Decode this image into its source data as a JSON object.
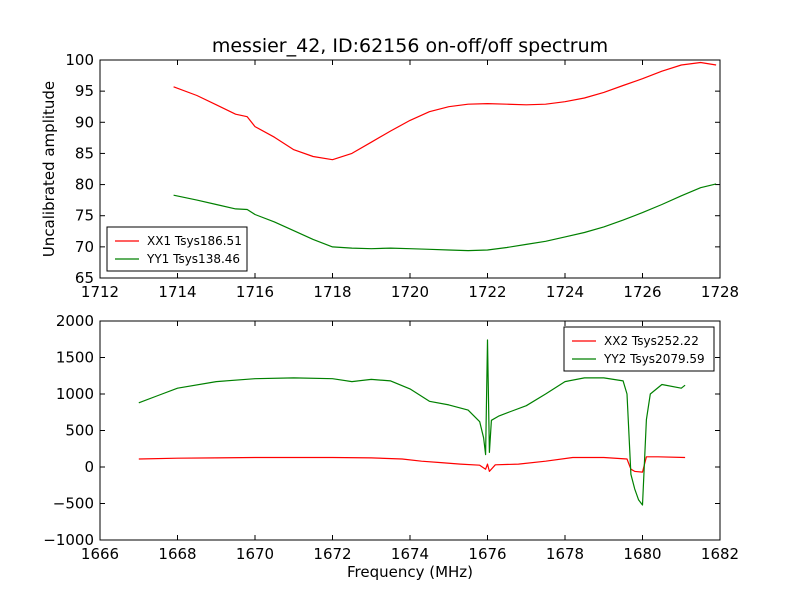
{
  "title": "messier_42, ID:62156 on-off/off spectrum",
  "colors": {
    "xx": "#ff0000",
    "yy": "#008000"
  },
  "chart_data": [
    {
      "type": "line",
      "ylabel": "Uncalibrated amplitude",
      "xlabel": "",
      "xlim": [
        1712,
        1728
      ],
      "ylim": [
        65,
        100
      ],
      "xticks": [
        1712,
        1714,
        1716,
        1718,
        1720,
        1722,
        1724,
        1726,
        1728
      ],
      "yticks": [
        65,
        70,
        75,
        80,
        85,
        90,
        95,
        100
      ],
      "legend": "bottom-left",
      "grid": false,
      "series": [
        {
          "name": "XX1 Tsys186.51",
          "color": "#ff0000",
          "x": [
            1713.9,
            1714.5,
            1715.0,
            1715.5,
            1715.8,
            1716.0,
            1716.5,
            1717.0,
            1717.5,
            1718.0,
            1718.5,
            1719.0,
            1719.5,
            1720.0,
            1720.5,
            1721.0,
            1721.5,
            1722.0,
            1722.5,
            1723.0,
            1723.5,
            1724.0,
            1724.5,
            1725.0,
            1725.5,
            1726.0,
            1726.5,
            1727.0,
            1727.5,
            1727.9
          ],
          "y": [
            95.7,
            94.3,
            92.8,
            91.3,
            90.9,
            89.3,
            87.6,
            85.6,
            84.5,
            84.0,
            85.0,
            86.8,
            88.6,
            90.3,
            91.7,
            92.5,
            92.9,
            93.0,
            92.9,
            92.8,
            92.9,
            93.3,
            93.9,
            94.8,
            95.9,
            97.0,
            98.2,
            99.2,
            99.6,
            99.2
          ]
        },
        {
          "name": "YY1 Tsys138.46",
          "color": "#008000",
          "x": [
            1713.9,
            1714.5,
            1715.0,
            1715.5,
            1715.8,
            1716.0,
            1716.5,
            1717.0,
            1717.5,
            1718.0,
            1718.5,
            1719.0,
            1719.5,
            1720.0,
            1720.5,
            1721.0,
            1721.5,
            1722.0,
            1722.5,
            1723.0,
            1723.5,
            1724.0,
            1724.5,
            1725.0,
            1725.5,
            1726.0,
            1726.5,
            1727.0,
            1727.5,
            1727.9
          ],
          "y": [
            78.3,
            77.5,
            76.8,
            76.1,
            76.0,
            75.2,
            74.0,
            72.6,
            71.2,
            70.0,
            69.8,
            69.7,
            69.8,
            69.7,
            69.6,
            69.5,
            69.4,
            69.5,
            69.9,
            70.4,
            70.9,
            71.6,
            72.3,
            73.2,
            74.3,
            75.5,
            76.8,
            78.2,
            79.5,
            80.1
          ]
        }
      ]
    },
    {
      "type": "line",
      "ylabel": "",
      "xlabel": "Frequency (MHz)",
      "xlim": [
        1666,
        1682
      ],
      "ylim": [
        -1000,
        2000
      ],
      "xticks": [
        1666,
        1668,
        1670,
        1672,
        1674,
        1676,
        1678,
        1680,
        1682
      ],
      "yticks": [
        -1000,
        -500,
        0,
        500,
        1000,
        1500,
        2000
      ],
      "legend": "top-right",
      "grid": false,
      "series": [
        {
          "name": "XX2 Tsys252.22",
          "color": "#ff0000",
          "x": [
            1667.0,
            1668.0,
            1669.0,
            1670.0,
            1671.0,
            1672.0,
            1673.0,
            1673.8,
            1674.3,
            1674.8,
            1675.3,
            1675.8,
            1675.95,
            1676.0,
            1676.05,
            1676.2,
            1676.8,
            1677.5,
            1678.2,
            1679.0,
            1679.6,
            1679.7,
            1679.8,
            1680.0,
            1680.1,
            1680.4,
            1681.1
          ],
          "y": [
            110,
            120,
            125,
            130,
            130,
            130,
            125,
            110,
            80,
            60,
            40,
            25,
            -30,
            40,
            -60,
            30,
            40,
            80,
            130,
            130,
            110,
            -30,
            -60,
            -70,
            140,
            140,
            130
          ]
        },
        {
          "name": "YY2 Tsys2079.59",
          "color": "#008000",
          "x": [
            1667.0,
            1667.5,
            1668.0,
            1669.0,
            1670.0,
            1671.0,
            1672.0,
            1672.5,
            1673.0,
            1673.5,
            1674.0,
            1674.5,
            1675.0,
            1675.5,
            1675.8,
            1675.9,
            1675.95,
            1676.0,
            1676.05,
            1676.1,
            1676.3,
            1676.6,
            1677.0,
            1677.5,
            1678.0,
            1678.5,
            1679.0,
            1679.5,
            1679.6,
            1679.7,
            1679.8,
            1679.9,
            1680.0,
            1680.1,
            1680.2,
            1680.5,
            1681.0,
            1681.1
          ],
          "y": [
            880,
            980,
            1080,
            1170,
            1210,
            1220,
            1210,
            1170,
            1200,
            1180,
            1070,
            900,
            850,
            780,
            620,
            400,
            170,
            1740,
            200,
            640,
            700,
            760,
            840,
            1000,
            1170,
            1220,
            1220,
            1180,
            1000,
            -100,
            -300,
            -450,
            -520,
            650,
            1000,
            1130,
            1080,
            1120
          ]
        }
      ]
    }
  ]
}
